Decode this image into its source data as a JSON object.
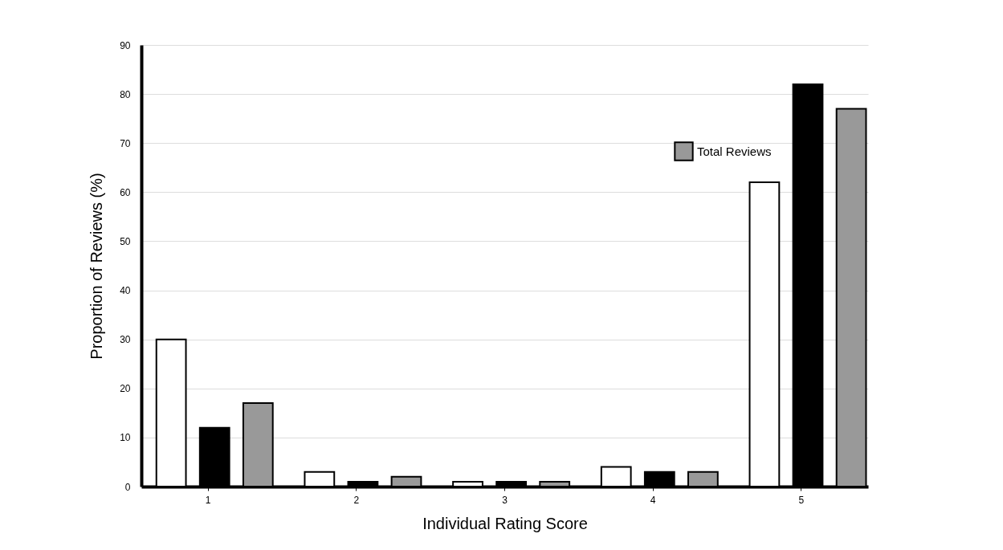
{
  "chart_data": {
    "type": "bar",
    "xlabel": "Individual Rating Score",
    "ylabel": "Proportion of Reviews (%)",
    "categories": [
      "1",
      "2",
      "3",
      "4",
      "5"
    ],
    "series": [
      {
        "color": "#ffffff",
        "values": [
          30,
          3,
          1,
          4,
          62
        ]
      },
      {
        "color": "#000000",
        "values": [
          12,
          1,
          1,
          3,
          82
        ]
      },
      {
        "name": "Total Reviews",
        "color": "#999999",
        "values": [
          17,
          2,
          1,
          3,
          77
        ]
      }
    ],
    "ylim": [
      0,
      90
    ],
    "yticks": [
      0,
      10,
      20,
      30,
      40,
      50,
      60,
      70,
      80,
      90
    ],
    "grid": "y",
    "legend": "top right"
  }
}
